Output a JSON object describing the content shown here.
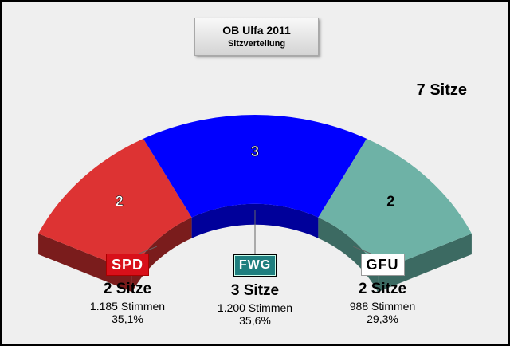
{
  "header": {
    "title": "OB Ulfa 2011",
    "subtitle": "Sitzverteilung"
  },
  "total_label": "7 Sitze",
  "chart_data": {
    "type": "pie",
    "variant": "3d-semicircle-arc",
    "title": "OB Ulfa 2011",
    "subtitle": "Sitzverteilung",
    "total_seats": 7,
    "categories": [
      "SPD",
      "FWG",
      "GFU"
    ],
    "values": [
      2,
      3,
      2
    ],
    "colors": {
      "SPD": "#dd3333",
      "FWG": "#0000ff",
      "GFU": "#6eb2a6"
    },
    "side_colors": {
      "SPD": "#7a1c1c",
      "FWG": "#00009a",
      "GFU": "#3c6a62"
    }
  },
  "parties": [
    {
      "name": "SPD",
      "seats_label": "2 Sitze",
      "votes_label": "1.185 Stimmen",
      "percent_label": "35,1%"
    },
    {
      "name": "FWG",
      "seats_label": "3 Sitze",
      "votes_label": "1.200 Stimmen",
      "percent_label": "35,6%"
    },
    {
      "name": "GFU",
      "seats_label": "2 Sitze",
      "votes_label": "988 Stimmen",
      "percent_label": "29,3%"
    }
  ]
}
